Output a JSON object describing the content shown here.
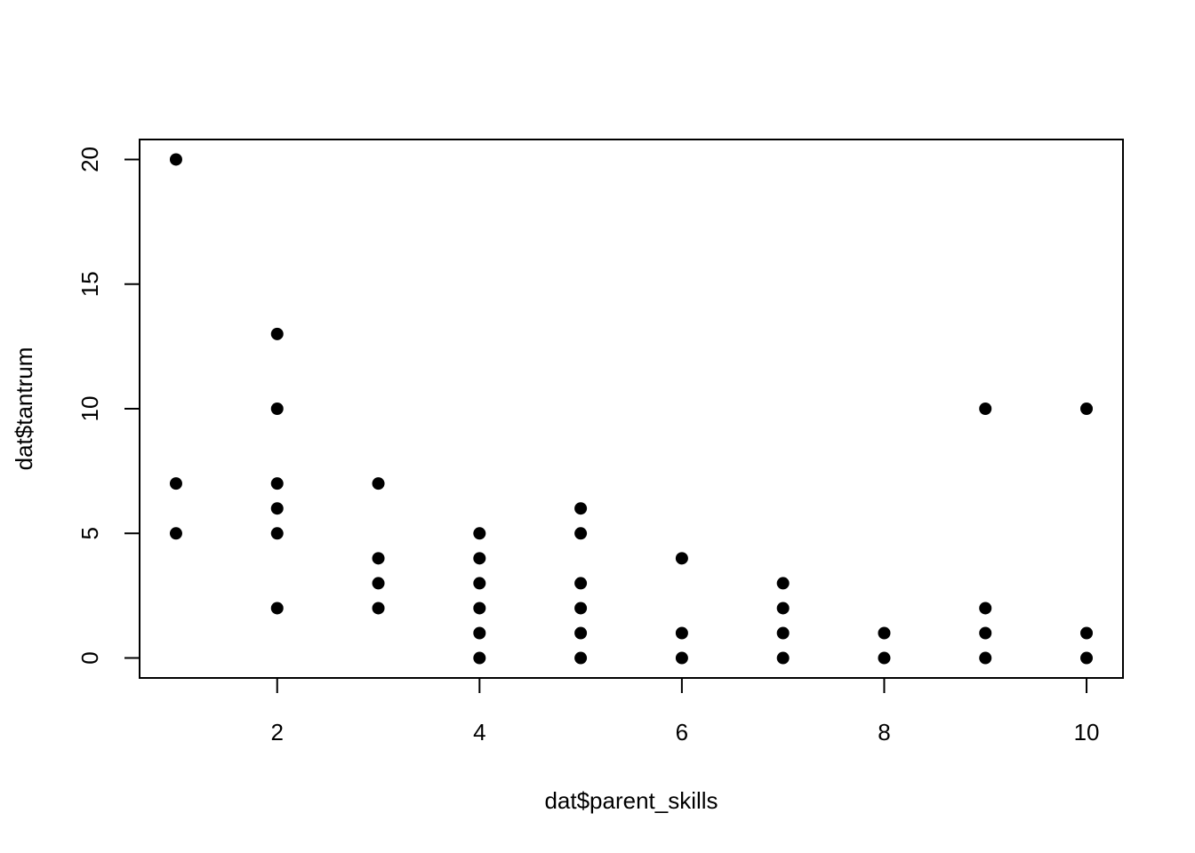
{
  "chart_data": {
    "type": "scatter",
    "title": "",
    "xlabel": "dat$parent_skills",
    "ylabel": "dat$tantrum",
    "xlim": [
      0.64,
      10.36
    ],
    "ylim": [
      -0.8,
      20.8
    ],
    "x_ticks": [
      2,
      4,
      6,
      8,
      10
    ],
    "x_tick_labels": [
      "2",
      "4",
      "6",
      "8",
      "10"
    ],
    "y_ticks": [
      0,
      5,
      10,
      15,
      20
    ],
    "y_tick_labels": [
      "0",
      "5",
      "10",
      "15",
      "20"
    ],
    "grid": false,
    "marker_color": "#000000",
    "points": [
      {
        "x": 1,
        "y": 20
      },
      {
        "x": 1,
        "y": 7
      },
      {
        "x": 1,
        "y": 5
      },
      {
        "x": 2,
        "y": 13
      },
      {
        "x": 2,
        "y": 10
      },
      {
        "x": 2,
        "y": 7
      },
      {
        "x": 2,
        "y": 6
      },
      {
        "x": 2,
        "y": 5
      },
      {
        "x": 2,
        "y": 2
      },
      {
        "x": 3,
        "y": 7
      },
      {
        "x": 3,
        "y": 4
      },
      {
        "x": 3,
        "y": 3
      },
      {
        "x": 3,
        "y": 2
      },
      {
        "x": 4,
        "y": 5
      },
      {
        "x": 4,
        "y": 4
      },
      {
        "x": 4,
        "y": 3
      },
      {
        "x": 4,
        "y": 2
      },
      {
        "x": 4,
        "y": 1
      },
      {
        "x": 4,
        "y": 0
      },
      {
        "x": 5,
        "y": 6
      },
      {
        "x": 5,
        "y": 5
      },
      {
        "x": 5,
        "y": 3
      },
      {
        "x": 5,
        "y": 2
      },
      {
        "x": 5,
        "y": 1
      },
      {
        "x": 5,
        "y": 0
      },
      {
        "x": 6,
        "y": 4
      },
      {
        "x": 6,
        "y": 1
      },
      {
        "x": 6,
        "y": 0
      },
      {
        "x": 7,
        "y": 3
      },
      {
        "x": 7,
        "y": 2
      },
      {
        "x": 7,
        "y": 1
      },
      {
        "x": 7,
        "y": 0
      },
      {
        "x": 8,
        "y": 1
      },
      {
        "x": 8,
        "y": 0
      },
      {
        "x": 9,
        "y": 10
      },
      {
        "x": 9,
        "y": 2
      },
      {
        "x": 9,
        "y": 1
      },
      {
        "x": 9,
        "y": 0
      },
      {
        "x": 10,
        "y": 10
      },
      {
        "x": 10,
        "y": 1
      },
      {
        "x": 10,
        "y": 0
      }
    ]
  }
}
